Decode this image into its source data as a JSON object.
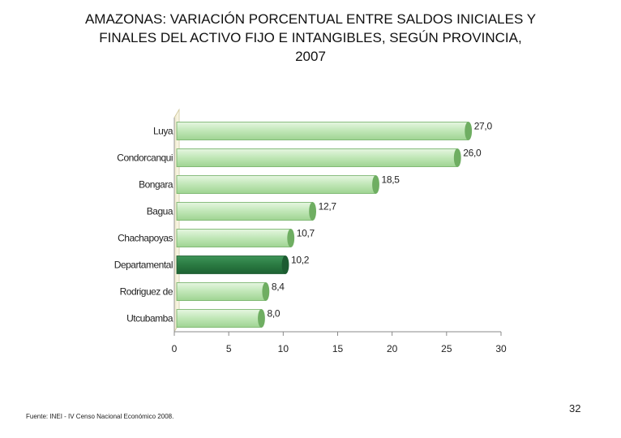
{
  "title_lines": [
    "AMAZONAS: VARIACIÓN PORCENTUAL ENTRE SALDOS INICIALES Y",
    "FINALES DEL ACTIVO FIJO E INTANGIBLES, SEGÚN PROVINCIA,",
    "2007"
  ],
  "chart_data": {
    "type": "bar",
    "orientation": "horizontal",
    "categories": [
      "Luya",
      "Condorcanqui",
      "Bongara",
      "Bagua",
      "Chachapoyas",
      "Departamental",
      "Rodriguez de",
      "Utcubamba"
    ],
    "values": [
      27.0,
      26.0,
      18.5,
      12.7,
      10.7,
      10.2,
      8.4,
      8.0
    ],
    "value_labels": [
      "27,0",
      "26,0",
      "18,5",
      "12,7",
      "10,7",
      "10,2",
      "8,4",
      "8,0"
    ],
    "highlight_category": "Departamental",
    "xlim": [
      0,
      30
    ],
    "xticks": [
      0,
      5,
      10,
      15,
      20,
      25,
      30
    ],
    "grid": false,
    "colors": {
      "bar": "#b9e3b0",
      "bar_edge": "#6fae62",
      "highlight": "#2e7d46",
      "highlight_edge": "#1d5c31",
      "wall": "#f3efd6"
    }
  },
  "footer": {
    "source": "Fuente: INEI - IV Censo Nacional Económico 2008.",
    "page_number": "32"
  }
}
